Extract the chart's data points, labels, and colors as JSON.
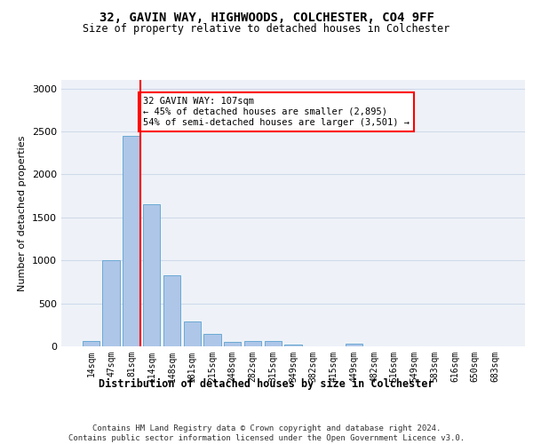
{
  "title1": "32, GAVIN WAY, HIGHWOODS, COLCHESTER, CO4 9FF",
  "title2": "Size of property relative to detached houses in Colchester",
  "xlabel": "Distribution of detached houses by size in Colchester",
  "ylabel": "Number of detached properties",
  "bar_labels": [
    "14sqm",
    "47sqm",
    "81sqm",
    "114sqm",
    "148sqm",
    "181sqm",
    "215sqm",
    "248sqm",
    "282sqm",
    "315sqm",
    "349sqm",
    "382sqm",
    "415sqm",
    "449sqm",
    "482sqm",
    "516sqm",
    "549sqm",
    "583sqm",
    "616sqm",
    "650sqm",
    "683sqm"
  ],
  "bar_values": [
    60,
    1000,
    2450,
    1650,
    830,
    290,
    140,
    55,
    65,
    60,
    25,
    0,
    0,
    35,
    0,
    0,
    0,
    0,
    0,
    0,
    0
  ],
  "bar_color": "#aec6e8",
  "bar_edge_color": "#6aaad4",
  "grid_color": "#d0daea",
  "background_color": "#eef2f8",
  "vline_x_index": 2,
  "vline_color": "red",
  "annotation_text": "32 GAVIN WAY: 107sqm\n← 45% of detached houses are smaller (2,895)\n54% of semi-detached houses are larger (3,501) →",
  "annotation_box_color": "white",
  "annotation_box_edge": "red",
  "footer": "Contains HM Land Registry data © Crown copyright and database right 2024.\nContains public sector information licensed under the Open Government Licence v3.0.",
  "ylim": [
    0,
    3100
  ],
  "yticks": [
    0,
    500,
    1000,
    1500,
    2000,
    2500,
    3000
  ]
}
